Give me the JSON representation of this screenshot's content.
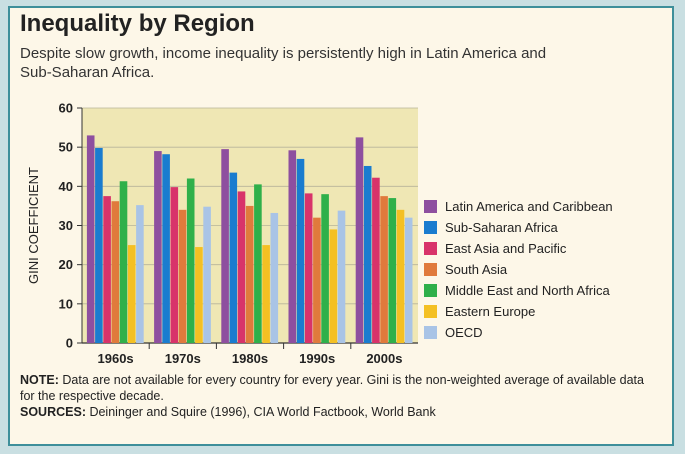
{
  "header": {
    "title": "Inequality by Region",
    "subtitle": "Despite slow growth, income inequality is persistently high in Latin America and Sub-Saharan Africa."
  },
  "footer": {
    "note_label": "NOTE:",
    "note_text": " Data are not available for every country for every year. Gini is the non-weighted average of available data for the respective decade.",
    "sources_label": "SOURCES:",
    "sources_text": " Deininger and Squire (1996), CIA World Factbook, World Bank"
  },
  "chart_data": {
    "type": "bar",
    "ylabel": "GINI COEFFICIENT",
    "ylim": [
      0,
      60
    ],
    "yticks": [
      0,
      10,
      20,
      30,
      40,
      50,
      60
    ],
    "categories": [
      "1960s",
      "1970s",
      "1980s",
      "1990s",
      "2000s"
    ],
    "legend_position": "right",
    "series": [
      {
        "name": "Latin America and Caribbean",
        "color": "#8e4f9f",
        "values": [
          53,
          49,
          49.5,
          49.2,
          52.5
        ]
      },
      {
        "name": "Sub-Saharan Africa",
        "color": "#1a7ccf",
        "values": [
          49.8,
          48.2,
          43.5,
          47,
          45.2
        ]
      },
      {
        "name": "East Asia and Pacific",
        "color": "#d8336a",
        "values": [
          37.5,
          39.8,
          38.7,
          38.2,
          42.2
        ]
      },
      {
        "name": "South Asia",
        "color": "#e07a3c",
        "values": [
          36.2,
          34,
          35,
          32,
          37.5
        ]
      },
      {
        "name": "Middle East and North Africa",
        "color": "#2fb04a",
        "values": [
          41.3,
          42,
          40.5,
          38,
          37
        ]
      },
      {
        "name": "Eastern Europe",
        "color": "#f4c023",
        "values": [
          25,
          24.5,
          25,
          29,
          34
        ]
      },
      {
        "name": "OECD",
        "color": "#a9c4e6",
        "values": [
          35.2,
          34.8,
          33.2,
          33.8,
          32
        ]
      }
    ]
  }
}
